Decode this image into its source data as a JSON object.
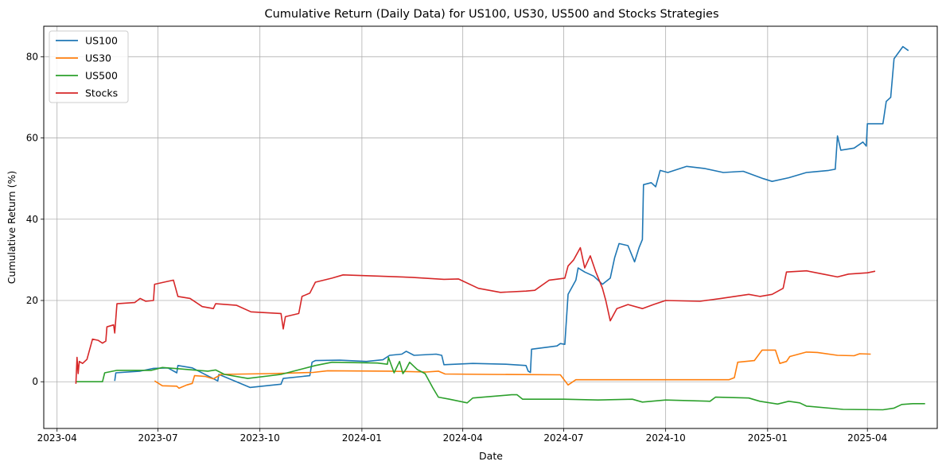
{
  "chart_data": {
    "type": "line",
    "title": "Cumulative Return (Daily Data) for US100, US30, US500 and Stocks Strategies",
    "xlabel": "Date",
    "ylabel": "Cumulative Return (%)",
    "x_tick_labels": [
      "2023-04",
      "2023-07",
      "2023-10",
      "2024-01",
      "2024-04",
      "2024-07",
      "2024-10",
      "2025-01",
      "2025-04"
    ],
    "x_ticks": [
      "2023-04-01",
      "2023-07-01",
      "2023-10-01",
      "2024-01-01",
      "2024-04-01",
      "2024-07-01",
      "2024-10-01",
      "2025-01-01",
      "2025-04-01"
    ],
    "y_ticks": [
      0,
      20,
      40,
      60,
      80
    ],
    "xlim": [
      "2023-03-20",
      "2025-06-03"
    ],
    "ylim": [
      -11.5,
      87.5
    ],
    "grid": true,
    "legend_position": "upper left",
    "series": [
      {
        "name": "US100",
        "color": "#1f77b4",
        "points": [
          [
            "2023-05-23",
            0.2
          ],
          [
            "2023-05-24",
            2.2
          ],
          [
            "2023-06-15",
            2.6
          ],
          [
            "2023-06-27",
            3.3
          ],
          [
            "2023-07-10",
            3.4
          ],
          [
            "2023-07-18",
            2.2
          ],
          [
            "2023-07-19",
            4.0
          ],
          [
            "2023-08-01",
            3.4
          ],
          [
            "2023-08-24",
            0.2
          ],
          [
            "2023-08-25",
            1.8
          ],
          [
            "2023-09-22",
            -1.4
          ],
          [
            "2023-10-20",
            -0.6
          ],
          [
            "2023-10-22",
            0.8
          ],
          [
            "2023-11-15",
            1.5
          ],
          [
            "2023-11-17",
            4.8
          ],
          [
            "2023-11-20",
            5.2
          ],
          [
            "2023-12-12",
            5.3
          ],
          [
            "2024-01-05",
            5.0
          ],
          [
            "2024-01-20",
            5.4
          ],
          [
            "2024-01-26",
            6.5
          ],
          [
            "2024-02-06",
            6.8
          ],
          [
            "2024-02-10",
            7.5
          ],
          [
            "2024-02-17",
            6.5
          ],
          [
            "2024-03-08",
            6.8
          ],
          [
            "2024-03-13",
            6.5
          ],
          [
            "2024-03-15",
            4.2
          ],
          [
            "2024-04-10",
            4.5
          ],
          [
            "2024-05-10",
            4.3
          ],
          [
            "2024-05-28",
            4.0
          ],
          [
            "2024-05-30",
            2.6
          ],
          [
            "2024-06-01",
            2.3
          ],
          [
            "2024-06-02",
            8.0
          ],
          [
            "2024-06-25",
            8.8
          ],
          [
            "2024-06-28",
            9.4
          ],
          [
            "2024-07-02",
            9.2
          ],
          [
            "2024-07-05",
            21.5
          ],
          [
            "2024-07-12",
            25.0
          ],
          [
            "2024-07-14",
            28.0
          ],
          [
            "2024-07-20",
            27.0
          ],
          [
            "2024-07-28",
            26.0
          ],
          [
            "2024-08-05",
            24.0
          ],
          [
            "2024-08-12",
            25.5
          ],
          [
            "2024-08-16",
            30.5
          ],
          [
            "2024-08-20",
            34.0
          ],
          [
            "2024-08-28",
            33.5
          ],
          [
            "2024-09-03",
            29.5
          ],
          [
            "2024-09-07",
            33.0
          ],
          [
            "2024-09-10",
            35.0
          ],
          [
            "2024-09-11",
            48.5
          ],
          [
            "2024-09-18",
            49.0
          ],
          [
            "2024-09-22",
            48.0
          ],
          [
            "2024-09-26",
            52.0
          ],
          [
            "2024-10-03",
            51.5
          ],
          [
            "2024-10-20",
            53.0
          ],
          [
            "2024-11-05",
            52.5
          ],
          [
            "2024-11-22",
            51.5
          ],
          [
            "2024-12-10",
            51.8
          ],
          [
            "2024-12-28",
            50.0
          ],
          [
            "2025-01-05",
            49.3
          ],
          [
            "2025-01-20",
            50.2
          ],
          [
            "2025-02-05",
            51.5
          ],
          [
            "2025-02-25",
            52.0
          ],
          [
            "2025-03-03",
            52.3
          ],
          [
            "2025-03-05",
            60.5
          ],
          [
            "2025-03-08",
            57.0
          ],
          [
            "2025-03-20",
            57.5
          ],
          [
            "2025-03-28",
            59.0
          ],
          [
            "2025-03-31",
            58.0
          ],
          [
            "2025-04-01",
            63.5
          ],
          [
            "2025-04-15",
            63.5
          ],
          [
            "2025-04-18",
            69.0
          ],
          [
            "2025-04-22",
            70.0
          ],
          [
            "2025-04-25",
            79.5
          ],
          [
            "2025-05-03",
            82.5
          ],
          [
            "2025-05-08",
            81.5
          ]
        ]
      },
      {
        "name": "US30",
        "color": "#ff7f0e",
        "points": [
          [
            "2023-06-28",
            0.2
          ],
          [
            "2023-07-05",
            -1.0
          ],
          [
            "2023-07-18",
            -1.1
          ],
          [
            "2023-07-20",
            -1.6
          ],
          [
            "2023-07-27",
            -0.8
          ],
          [
            "2023-08-01",
            -0.4
          ],
          [
            "2023-08-03",
            1.5
          ],
          [
            "2023-08-13",
            1.3
          ],
          [
            "2023-08-20",
            0.7
          ],
          [
            "2023-08-27",
            1.8
          ],
          [
            "2023-10-10",
            2.0
          ],
          [
            "2023-11-18",
            2.3
          ],
          [
            "2023-12-01",
            2.7
          ],
          [
            "2024-01-25",
            2.6
          ],
          [
            "2024-02-28",
            2.4
          ],
          [
            "2024-03-10",
            2.6
          ],
          [
            "2024-03-16",
            1.9
          ],
          [
            "2024-04-25",
            1.8
          ],
          [
            "2024-06-28",
            1.7
          ],
          [
            "2024-07-05",
            -0.8
          ],
          [
            "2024-07-12",
            0.5
          ],
          [
            "2024-11-27",
            0.5
          ],
          [
            "2024-12-02",
            1.0
          ],
          [
            "2024-12-05",
            4.8
          ],
          [
            "2024-12-20",
            5.2
          ],
          [
            "2024-12-27",
            7.8
          ],
          [
            "2025-01-08",
            7.8
          ],
          [
            "2025-01-12",
            4.5
          ],
          [
            "2025-01-18",
            5.0
          ],
          [
            "2025-01-21",
            6.2
          ],
          [
            "2025-02-05",
            7.3
          ],
          [
            "2025-02-15",
            7.2
          ],
          [
            "2025-03-05",
            6.5
          ],
          [
            "2025-03-20",
            6.4
          ],
          [
            "2025-03-25",
            6.9
          ],
          [
            "2025-04-04",
            6.8
          ]
        ]
      },
      {
        "name": "US500",
        "color": "#2ca02c",
        "points": [
          [
            "2023-04-18",
            0.0
          ],
          [
            "2023-05-12",
            0.0
          ],
          [
            "2023-05-14",
            2.2
          ],
          [
            "2023-05-25",
            2.8
          ],
          [
            "2023-06-25",
            2.8
          ],
          [
            "2023-07-05",
            3.5
          ],
          [
            "2023-07-20",
            3.2
          ],
          [
            "2023-08-15",
            2.6
          ],
          [
            "2023-08-22",
            2.9
          ],
          [
            "2023-08-30",
            1.8
          ],
          [
            "2023-09-20",
            0.8
          ],
          [
            "2023-10-20",
            1.8
          ],
          [
            "2023-11-20",
            4.0
          ],
          [
            "2023-12-05",
            4.8
          ],
          [
            "2024-01-15",
            4.6
          ],
          [
            "2024-01-24",
            4.3
          ],
          [
            "2024-01-25",
            6.0
          ],
          [
            "2024-01-30",
            2.2
          ],
          [
            "2024-02-04",
            5.0
          ],
          [
            "2024-02-07",
            2.0
          ],
          [
            "2024-02-10",
            3.2
          ],
          [
            "2024-02-13",
            4.8
          ],
          [
            "2024-02-20",
            3.0
          ],
          [
            "2024-02-27",
            2.0
          ],
          [
            "2024-03-05",
            -1.5
          ],
          [
            "2024-03-10",
            -3.8
          ],
          [
            "2024-03-20",
            -4.3
          ],
          [
            "2024-04-05",
            -5.2
          ],
          [
            "2024-04-10",
            -4.0
          ],
          [
            "2024-05-15",
            -3.2
          ],
          [
            "2024-05-20",
            -3.2
          ],
          [
            "2024-05-25",
            -4.3
          ],
          [
            "2024-07-01",
            -4.3
          ],
          [
            "2024-08-01",
            -4.5
          ],
          [
            "2024-09-01",
            -4.3
          ],
          [
            "2024-09-10",
            -5.0
          ],
          [
            "2024-10-01",
            -4.5
          ],
          [
            "2024-11-10",
            -4.8
          ],
          [
            "2024-11-15",
            -3.8
          ],
          [
            "2024-12-15",
            -4.0
          ],
          [
            "2024-12-25",
            -4.8
          ],
          [
            "2025-01-10",
            -5.5
          ],
          [
            "2025-01-20",
            -4.8
          ],
          [
            "2025-01-30",
            -5.2
          ],
          [
            "2025-02-05",
            -6.0
          ],
          [
            "2025-03-10",
            -6.8
          ],
          [
            "2025-04-15",
            -6.9
          ],
          [
            "2025-04-25",
            -6.5
          ],
          [
            "2025-05-02",
            -5.6
          ],
          [
            "2025-05-12",
            -5.4
          ],
          [
            "2025-05-23",
            -5.4
          ]
        ]
      },
      {
        "name": "Stocks",
        "color": "#d62728",
        "points": [
          [
            "2023-04-18",
            -0.5
          ],
          [
            "2023-04-19",
            6.0
          ],
          [
            "2023-04-20",
            2.0
          ],
          [
            "2023-04-21",
            5.0
          ],
          [
            "2023-04-24",
            4.5
          ],
          [
            "2023-04-28",
            5.5
          ],
          [
            "2023-05-03",
            10.5
          ],
          [
            "2023-05-08",
            10.2
          ],
          [
            "2023-05-12",
            9.5
          ],
          [
            "2023-05-15",
            10.0
          ],
          [
            "2023-05-16",
            13.5
          ],
          [
            "2023-05-22",
            14.0
          ],
          [
            "2023-05-23",
            12.0
          ],
          [
            "2023-05-25",
            19.2
          ],
          [
            "2023-06-10",
            19.5
          ],
          [
            "2023-06-15",
            20.5
          ],
          [
            "2023-06-20",
            19.8
          ],
          [
            "2023-06-27",
            20.0
          ],
          [
            "2023-06-28",
            24.0
          ],
          [
            "2023-07-08",
            24.6
          ],
          [
            "2023-07-15",
            25.0
          ],
          [
            "2023-07-19",
            21.0
          ],
          [
            "2023-07-30",
            20.5
          ],
          [
            "2023-08-10",
            18.5
          ],
          [
            "2023-08-20",
            18.0
          ],
          [
            "2023-08-22",
            19.2
          ],
          [
            "2023-09-10",
            18.8
          ],
          [
            "2023-09-23",
            17.2
          ],
          [
            "2023-10-20",
            16.8
          ],
          [
            "2023-10-22",
            13.0
          ],
          [
            "2023-10-24",
            16.0
          ],
          [
            "2023-11-05",
            16.8
          ],
          [
            "2023-11-08",
            21.0
          ],
          [
            "2023-11-15",
            21.8
          ],
          [
            "2023-11-20",
            24.5
          ],
          [
            "2023-12-05",
            25.5
          ],
          [
            "2023-12-15",
            26.3
          ],
          [
            "2024-01-15",
            26.0
          ],
          [
            "2024-02-15",
            25.7
          ],
          [
            "2024-03-15",
            25.2
          ],
          [
            "2024-03-28",
            25.3
          ],
          [
            "2024-04-15",
            23.0
          ],
          [
            "2024-05-05",
            22.0
          ],
          [
            "2024-05-28",
            22.3
          ],
          [
            "2024-06-05",
            22.5
          ],
          [
            "2024-06-18",
            25.0
          ],
          [
            "2024-07-02",
            25.5
          ],
          [
            "2024-07-05",
            28.5
          ],
          [
            "2024-07-10",
            30.0
          ],
          [
            "2024-07-16",
            33.0
          ],
          [
            "2024-07-20",
            28.0
          ],
          [
            "2024-07-25",
            31.0
          ],
          [
            "2024-07-30",
            27.0
          ],
          [
            "2024-08-05",
            23.0
          ],
          [
            "2024-08-08",
            20.0
          ],
          [
            "2024-08-12",
            15.0
          ],
          [
            "2024-08-18",
            18.0
          ],
          [
            "2024-08-28",
            19.0
          ],
          [
            "2024-09-10",
            18.0
          ],
          [
            "2024-09-20",
            19.0
          ],
          [
            "2024-10-01",
            20.0
          ],
          [
            "2024-11-01",
            19.8
          ],
          [
            "2024-11-20",
            20.5
          ],
          [
            "2024-12-15",
            21.5
          ],
          [
            "2024-12-25",
            21.0
          ],
          [
            "2025-01-05",
            21.5
          ],
          [
            "2025-01-15",
            23.0
          ],
          [
            "2025-01-18",
            27.0
          ],
          [
            "2025-02-05",
            27.3
          ],
          [
            "2025-02-20",
            26.5
          ],
          [
            "2025-03-05",
            25.8
          ],
          [
            "2025-03-15",
            26.5
          ],
          [
            "2025-04-01",
            26.8
          ],
          [
            "2025-04-08",
            27.2
          ]
        ]
      }
    ]
  }
}
